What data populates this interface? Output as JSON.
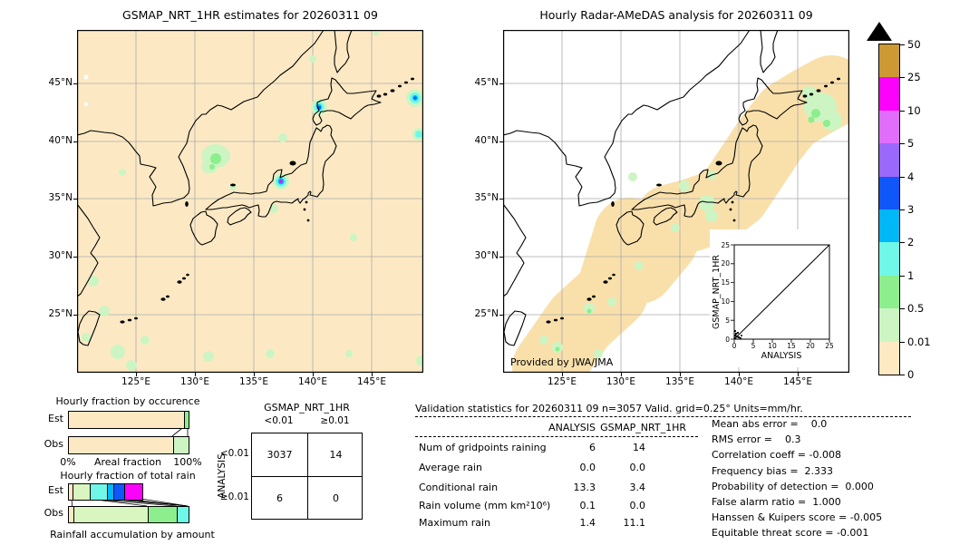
{
  "left_map": {
    "title": "GSMAP_NRT_1HR estimates for 20260311 09",
    "x_tick_labels": [
      "125°E",
      "130°E",
      "135°E",
      "140°E",
      "145°E"
    ],
    "y_tick_labels": [
      "45°N",
      "40°N",
      "35°N",
      "30°N",
      "25°N"
    ]
  },
  "right_map": {
    "title": "Hourly Radar-AMeDAS analysis for 20260311 09",
    "provided_by": "Provided by JWA/JMA",
    "x_tick_labels": [
      "125°E",
      "130°E",
      "135°E",
      "140°E",
      "145°E"
    ],
    "y_tick_labels": [
      "45°N",
      "40°N",
      "35°N",
      "30°N",
      "25°N"
    ],
    "inset": {
      "xlabel": "ANALYSIS",
      "ylabel": "GSMAP_NRT_1HR",
      "xticks": [
        "0",
        "5",
        "10",
        "15",
        "20",
        "25"
      ],
      "yticks": [
        "0",
        "5",
        "10",
        "15",
        "20",
        "25"
      ]
    }
  },
  "colorbar": {
    "levels": [
      "50",
      "25",
      "10",
      "5",
      "4",
      "3",
      "2",
      "1",
      "0.5",
      "0.01",
      "0"
    ],
    "segment_colors_top_to_bottom": [
      "#cc9933",
      "#fb02fb",
      "#e06efa",
      "#9a68fa",
      "#1057fa",
      "#00b8f5",
      "#6ff8e8",
      "#8dee8d",
      "#ccf5c3",
      "#fde9c2"
    ],
    "overflow_arrow_color": "#000000",
    "units": "mm/hr"
  },
  "occurrence_chart": {
    "title": "Hourly fraction by occurence",
    "row_labels": [
      "Est",
      "Obs"
    ],
    "x_axis": {
      "left": "0%",
      "center": "Areal fraction",
      "right": "100%"
    },
    "bars": {
      "Est": [
        {
          "color": "#fce9c4",
          "pct": 96.5
        },
        {
          "color": "#8dee8d",
          "pct": 3.5
        }
      ],
      "Obs": [
        {
          "color": "#fce9c4",
          "pct": 87
        },
        {
          "color": "#ccf5c3",
          "pct": 13
        }
      ]
    }
  },
  "totalrain_chart": {
    "title": "Hourly fraction of total rain",
    "row_labels": [
      "Est",
      "Obs"
    ],
    "bottom_label": "Rainfall accumulation by amount",
    "bars": {
      "Est": [
        {
          "color": "#fce9c4",
          "pct": 3
        },
        {
          "color": "#d9f6c0",
          "pct": 14
        },
        {
          "color": "#6ff8e8",
          "pct": 15
        },
        {
          "color": "#00b8f5",
          "pct": 5
        },
        {
          "color": "#1057fa",
          "pct": 9
        },
        {
          "color": "#fb02fb",
          "pct": 15
        }
      ],
      "Obs": [
        {
          "color": "#fce9c4",
          "pct": 3.5
        },
        {
          "color": "#d9f6c0",
          "pct": 62.5
        },
        {
          "color": "#8dee8d",
          "pct": 24.5
        },
        {
          "color": "#6ff8e8",
          "pct": 9.5
        }
      ]
    }
  },
  "contingency": {
    "col_title": "GSMAP_NRT_1HR",
    "row_title": "ANALYSIS",
    "col_labels": [
      "<0.01",
      "≥0.01"
    ],
    "row_labels": [
      "<0.01",
      "≥0.01"
    ],
    "values": [
      [
        "3037",
        "14"
      ],
      [
        "6",
        "0"
      ]
    ]
  },
  "stats": {
    "title": "Validation statistics for 20260311 09  n=3057 Valid. grid=0.25° Units=mm/hr.",
    "columns": [
      "ANALYSIS",
      "GSMAP_NRT_1HR"
    ],
    "rows": [
      {
        "label": "Num of gridpoints raining",
        "analysis": "6",
        "gsmap": "14"
      },
      {
        "label": "Average rain",
        "analysis": "0.0",
        "gsmap": "0.0"
      },
      {
        "label": "Conditional rain",
        "analysis": "13.3",
        "gsmap": "3.4"
      },
      {
        "label": "Rain volume (mm km²10⁶)",
        "analysis": "0.1",
        "gsmap": "0.0"
      },
      {
        "label": "Maximum rain",
        "analysis": "1.4",
        "gsmap": "11.1"
      }
    ],
    "scores": [
      "Mean abs error =    0.0",
      "RMS error =    0.3",
      "Correlation coeff = -0.008",
      "Frequency bias =  2.333",
      "Probability of detection =  0.000",
      "False alarm ratio =  1.000",
      "Hanssen & Kuipers score = -0.005",
      "Equitable threat score = -0.001"
    ]
  },
  "chart_data": [
    {
      "type": "heatmap",
      "title": "GSMAP_NRT_1HR estimates for 20260311 09",
      "region": "Japan, lon 120E-149.4E, lat 20N-49.6N",
      "units": "mm/hr",
      "notes": "background 0-0.01 everywhere; scattered 0.01-0.5 patches; rain cells up to 10-25 mm/hr near 36.5N 137.3E (max 11.1) and near 43N 140.5E; small cells at eastern edge ~44N 148E"
    },
    {
      "type": "heatmap",
      "title": "Hourly Radar-AMeDAS analysis for 20260311 09",
      "region": "Japan, lon 120E-149.4E, lat 20N-49.6N",
      "units": "mm/hr",
      "notes": "radar coverage swath along archipelago at 0 mm/hr with scattered 0.01-0.5 patches (max 1.4 mm/hr); outside coverage is blank"
    },
    {
      "type": "colorbar",
      "boundaries": [
        0,
        0.01,
        0.5,
        1,
        2,
        3,
        4,
        5,
        10,
        25,
        50
      ],
      "units": "mm/hr",
      "overflow_arrow": "above 50"
    },
    {
      "type": "bar",
      "title": "Hourly fraction by occurence",
      "xlabel": "Areal fraction",
      "xlim": [
        "0%",
        "100%"
      ],
      "categories": [
        "Est",
        "Obs"
      ],
      "series": [
        {
          "name": "0-0.01 mm/hr",
          "values": [
            96.5,
            87
          ]
        },
        {
          "name": "0.01+ mm/hr",
          "values": [
            3.5,
            13
          ]
        }
      ]
    },
    {
      "type": "bar",
      "title": "Hourly fraction of total rain",
      "xlabel": "Rainfall accumulation by amount",
      "categories": [
        "Est",
        "Obs"
      ],
      "est_segments_pct_by_intensity_class": [
        3,
        14,
        15,
        5,
        9,
        15
      ],
      "obs_segments_pct_by_intensity_class": [
        3.5,
        62.5,
        24.5,
        9.5
      ],
      "note": "Est bar total length ~61% of Obs bar"
    },
    {
      "type": "scatter",
      "xlabel": "ANALYSIS",
      "ylabel": "GSMAP_NRT_1HR",
      "xlim": [
        0,
        25
      ],
      "ylim": [
        0,
        25
      ],
      "diagonal_line": true,
      "points": [
        [
          0,
          0
        ],
        [
          0.1,
          0.2
        ],
        [
          0.3,
          0.1
        ],
        [
          0.5,
          0.4
        ],
        [
          0.8,
          0.2
        ],
        [
          1,
          0.6
        ],
        [
          1.4,
          0.3
        ],
        [
          0.2,
          1.1
        ],
        [
          0.4,
          2.0
        ]
      ]
    },
    {
      "type": "table",
      "title": "contingency table",
      "columns": [
        "GSMAP_NRT_1HR <0.01",
        "GSMAP_NRT_1HR ≥0.01"
      ],
      "rows": [
        "ANALYSIS <0.01",
        "ANALYSIS ≥0.01"
      ],
      "values": [
        [
          3037,
          14
        ],
        [
          6,
          0
        ]
      ]
    }
  ]
}
